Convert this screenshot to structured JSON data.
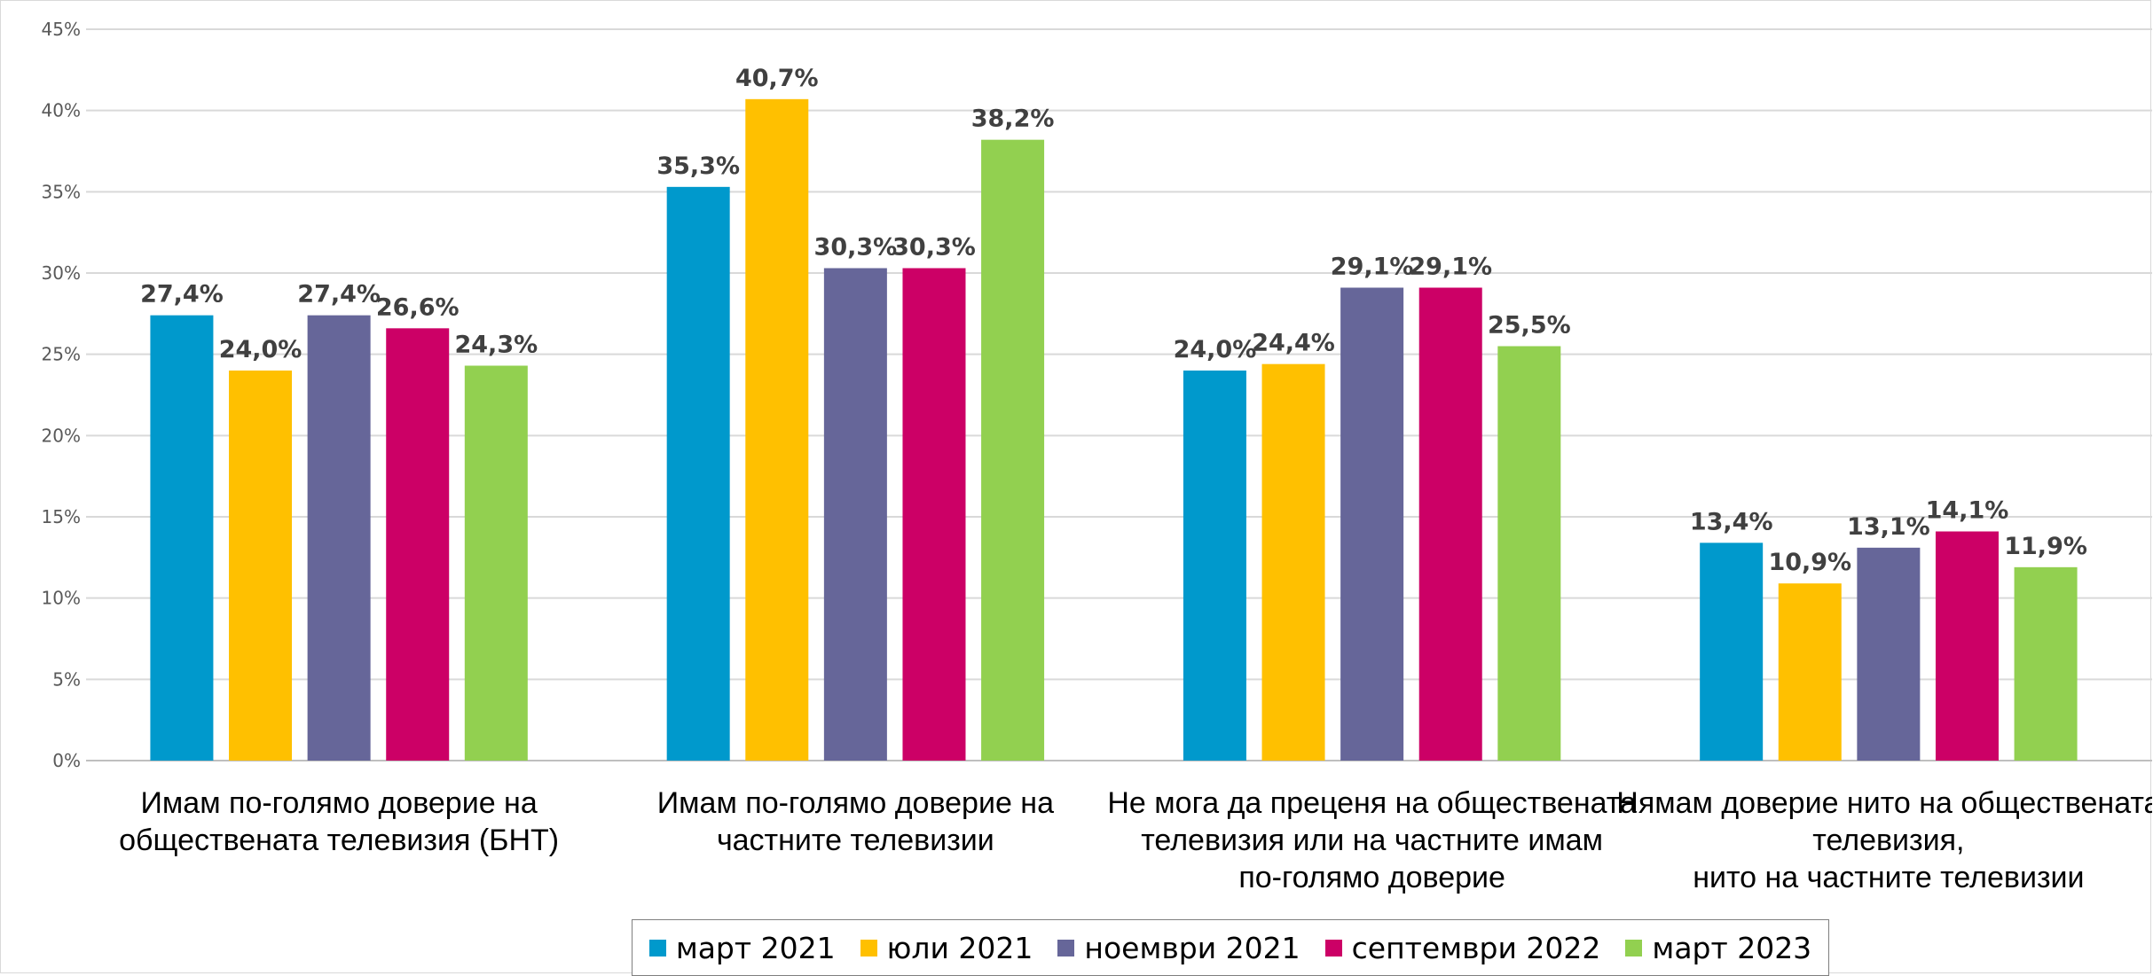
{
  "chart_data": {
    "type": "bar",
    "title": "",
    "xlabel": "",
    "ylabel": "",
    "ylim": [
      0,
      45
    ],
    "y_ticks": [
      "0%",
      "5%",
      "10%",
      "15%",
      "20%",
      "25%",
      "30%",
      "35%",
      "40%",
      "45%"
    ],
    "grid": true,
    "legend_position": "bottom",
    "categories": [
      [
        "Имам по-голямо доверие на",
        "обществената телевизия (БНТ)"
      ],
      [
        "Имам по-голямо доверие на",
        "частните телевизии"
      ],
      [
        "Не мога да преценя на обществената",
        "телевизия или на частните имам",
        "по-голямо доверие"
      ],
      [
        "Нямам доверие нито на обществената",
        "телевизия,",
        "нито на частните телевизии"
      ]
    ],
    "series": [
      {
        "name": "март 2021",
        "color": "#0099cc",
        "values": [
          27.4,
          35.3,
          24.0,
          13.4
        ],
        "labels": [
          "27,4%",
          "35,3%",
          "24,0%",
          "13,4%"
        ]
      },
      {
        "name": "юли 2021",
        "color": "#ffc000",
        "values": [
          24.0,
          40.7,
          24.4,
          10.9
        ],
        "labels": [
          "24,0%",
          "40,7%",
          "24,4%",
          "10,9%"
        ]
      },
      {
        "name": "ноември 2021",
        "color": "#666699",
        "values": [
          27.4,
          30.3,
          29.1,
          13.1
        ],
        "labels": [
          "27,4%",
          "30,3%",
          "29,1%",
          "13,1%"
        ]
      },
      {
        "name": "септември 2022",
        "color": "#cc0066",
        "values": [
          26.6,
          30.3,
          29.1,
          14.1
        ],
        "labels": [
          "26,6%",
          "30,3%",
          "29,1%",
          "14,1%"
        ]
      },
      {
        "name": "март 2023",
        "color": "#92d050",
        "values": [
          24.3,
          38.2,
          25.5,
          11.9
        ],
        "labels": [
          "24,3%",
          "38,2%",
          "25,5%",
          "11,9%"
        ]
      }
    ]
  }
}
